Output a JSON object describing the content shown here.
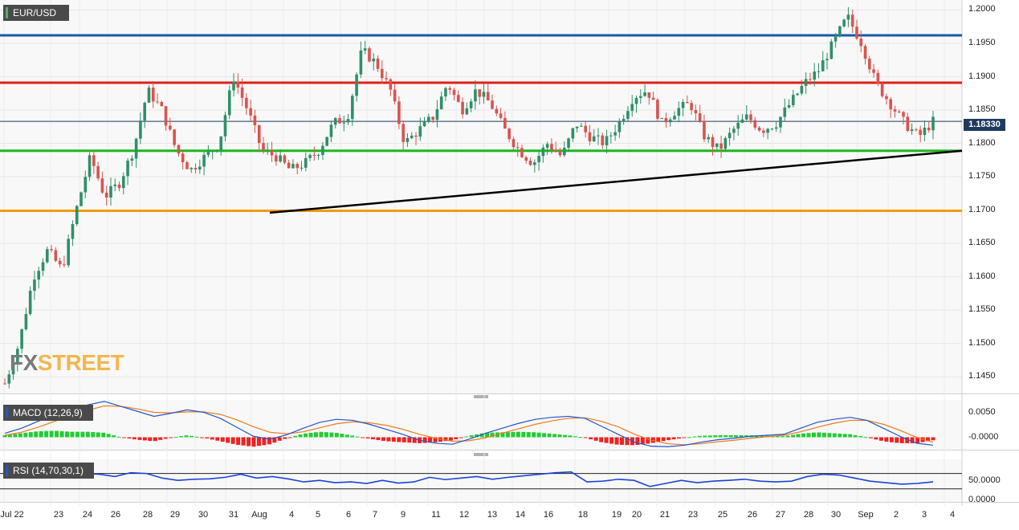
{
  "chart_data": [
    {
      "type": "candlestick",
      "title": "EUR/USD",
      "price_ticks": [
        "1.2000",
        "1.1950",
        "1.1900",
        "1.1850",
        "1.1800",
        "1.1750",
        "1.1700",
        "1.1650",
        "1.1600",
        "1.1550",
        "1.1500",
        "1.1450"
      ],
      "x_ticks": [
        "Jul 22",
        "23",
        "24",
        "26",
        "28",
        "29",
        "30",
        "31",
        "Aug",
        "4",
        "5",
        "6",
        "7",
        "9",
        "11",
        "12",
        "13",
        "14",
        "16",
        "18",
        "19",
        "20",
        "21",
        "23",
        "25",
        "26",
        "27",
        "28",
        "30",
        "Sep",
        "2",
        "3",
        "4"
      ],
      "ylim": [
        1.1425,
        1.2015
      ],
      "current_price": "1.18330",
      "horizontal_levels": [
        {
          "value": 1.1962,
          "color": "#1a5aa8"
        },
        {
          "value": 1.1891,
          "color": "#e0201a"
        },
        {
          "value": 1.1789,
          "color": "#1db81d"
        },
        {
          "value": 1.1699,
          "color": "#f59a10"
        }
      ],
      "trendline": {
        "from": {
          "x": "Aug 3",
          "y": 1.1696
        },
        "to": {
          "x": "Sep 3",
          "y": 1.1789
        },
        "color": "#000000"
      },
      "close_path": [
        1.144,
        1.15,
        1.16,
        1.164,
        1.161,
        1.17,
        1.178,
        1.172,
        1.174,
        1.179,
        1.188,
        1.185,
        1.179,
        1.176,
        1.178,
        1.18,
        1.19,
        1.185,
        1.179,
        1.178,
        1.176,
        1.177,
        1.179,
        1.183,
        1.184,
        1.194,
        1.192,
        1.188,
        1.18,
        1.182,
        1.184,
        1.189,
        1.185,
        1.188,
        1.186,
        1.182,
        1.179,
        1.177,
        1.18,
        1.178,
        1.183,
        1.181,
        1.18,
        1.183,
        1.187,
        1.188,
        1.183,
        1.185,
        1.186,
        1.181,
        1.179,
        1.182,
        1.184,
        1.182,
        1.183,
        1.186,
        1.189,
        1.191,
        1.195,
        1.199,
        1.195,
        1.189,
        1.186,
        1.183,
        1.181,
        1.1833
      ],
      "macd_label": "MACD (12,26,9)",
      "macd_ticks": [
        "0.0050",
        "-0.0000"
      ],
      "macd_ylim": [
        -0.0025,
        0.0075
      ],
      "macd_line": [
        0.0008,
        0.0018,
        0.0032,
        0.0045,
        0.0055,
        0.0065,
        0.0072,
        0.0062,
        0.0052,
        0.0042,
        0.0048,
        0.0055,
        0.005,
        0.0038,
        0.002,
        0.0002,
        -0.0004,
        0.0005,
        0.0018,
        0.003,
        0.0036,
        0.0034,
        0.0026,
        0.0016,
        0.0006,
        -0.0006,
        -0.0012,
        -0.0014,
        -0.0004,
        0.0008,
        0.0018,
        0.0028,
        0.0036,
        0.004,
        0.0042,
        0.0038,
        0.0022,
        0.0006,
        -0.001,
        -0.0018,
        -0.0019,
        -0.0016,
        -0.001,
        -0.0005,
        -0.0002,
        0.0002,
        0.0004,
        0.0006,
        0.0018,
        0.003,
        0.0036,
        0.004,
        0.0034,
        0.0018,
        0.0002,
        -0.0012,
        -0.0016
      ],
      "signal_line": [
        0.0004,
        0.001,
        0.002,
        0.0032,
        0.0044,
        0.0054,
        0.0063,
        0.0062,
        0.0057,
        0.005,
        0.0049,
        0.0051,
        0.0051,
        0.0046,
        0.0035,
        0.0021,
        0.001,
        0.0007,
        0.0011,
        0.0019,
        0.0027,
        0.0031,
        0.0029,
        0.0024,
        0.0016,
        0.0006,
        -0.0002,
        -0.0008,
        -0.0007,
        -0.0001,
        0.0008,
        0.0017,
        0.0026,
        0.0033,
        0.0038,
        0.0039,
        0.0032,
        0.0021,
        0.0006,
        -0.0006,
        -0.0013,
        -0.0015,
        -0.0013,
        -0.0009,
        -0.0006,
        -0.0002,
        0.0001,
        0.0004,
        0.0011,
        0.002,
        0.0028,
        0.0034,
        0.0034,
        0.0026,
        0.0014,
        0.0,
        -0.001
      ],
      "rsi_label": "RSI (14,70,30,1)",
      "rsi_ticks": [
        "50.0000",
        "0.0000"
      ],
      "rsi_ylim": [
        0,
        100
      ],
      "rsi_levels": [
        70,
        30
      ],
      "rsi": [
        62,
        68,
        70,
        72,
        66,
        70,
        68,
        62,
        72,
        70,
        58,
        52,
        55,
        56,
        60,
        68,
        58,
        62,
        56,
        48,
        52,
        46,
        48,
        44,
        52,
        45,
        48,
        60,
        54,
        58,
        62,
        55,
        60,
        64,
        68,
        72,
        74,
        48,
        50,
        55,
        52,
        36,
        44,
        52,
        46,
        50,
        52,
        55,
        50,
        48,
        50,
        62,
        68,
        66,
        58,
        50,
        46,
        42,
        44,
        48
      ]
    }
  ],
  "ui": {
    "tag_main": "EUR/USD",
    "tag_macd": "MACD (12,26,9)",
    "tag_rsi": "RSI (14,70,30,1)",
    "brand_a": "FX",
    "brand_b": "STREET"
  },
  "colors": {
    "bull": "#2f8f68",
    "bear": "#d9534f",
    "macd": "#2255cc",
    "signal": "#f07a1a",
    "hist_up": "#22cc33",
    "hist_down": "#ee2222",
    "rsi": "#1a44d8"
  }
}
